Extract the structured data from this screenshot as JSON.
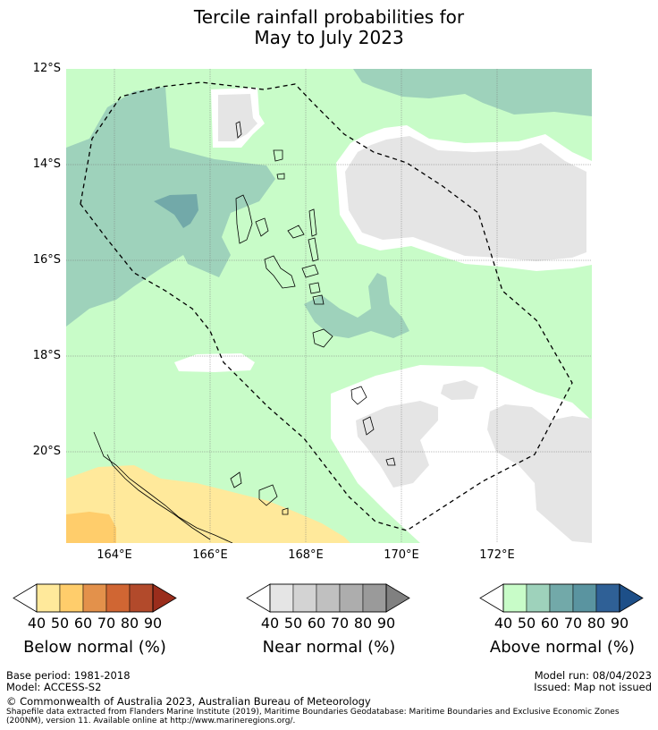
{
  "title_line1": "Tercile rainfall probabilities for",
  "title_line2": "May to July 2023",
  "map": {
    "lat_labels": [
      "12°S",
      "14°S",
      "16°S",
      "18°S",
      "20°S"
    ],
    "lon_labels": [
      "164°E",
      "166°E",
      "168°E",
      "170°E",
      "172°E"
    ],
    "lon_range": [
      163,
      174
    ],
    "lat_range": [
      -21.9,
      -12
    ],
    "colors": {
      "above_40": "#c8fcc8",
      "above_50": "#9ed2bb",
      "above_60": "#72a9a9",
      "near_40": "#e5e5e5",
      "below_40": "#ffe99b",
      "below_50": "#ffcd6b",
      "coast": "#000000",
      "eez": "#000000"
    }
  },
  "colorbars": [
    {
      "id": "below",
      "title": "Below normal (%)",
      "ticks": [
        "40",
        "50",
        "60",
        "70",
        "80",
        "90"
      ],
      "colors": [
        "#ffe99b",
        "#ffcd6b",
        "#e3914b",
        "#d06633",
        "#b24a2b",
        "#9a2d1c"
      ]
    },
    {
      "id": "near",
      "title": "Near normal (%)",
      "ticks": [
        "40",
        "50",
        "60",
        "70",
        "80",
        "90"
      ],
      "colors": [
        "#e5e5e5",
        "#d3d3d3",
        "#c0c0c0",
        "#adadad",
        "#9a9a9a",
        "#808080"
      ]
    },
    {
      "id": "above",
      "title": "Above normal (%)",
      "ticks": [
        "40",
        "50",
        "60",
        "70",
        "80",
        "90"
      ],
      "colors": [
        "#c8fcc8",
        "#9ed2bb",
        "#72a9a9",
        "#5a94a0",
        "#2f6096",
        "#1d4f88"
      ]
    }
  ],
  "footer": {
    "base_period": "Base period: 1981-2018",
    "model": "Model: ACCESS-S2",
    "model_run": "Model run: 08/04/2023",
    "issued": "Issued: Map not issued",
    "copyright": "© Commonwealth of Australia 2023, Australian Bureau of Meteorology",
    "shapefile_line1": "Shapefile data extracted from Flanders Marine Institute (2019), Maritime Boundaries Geodatabase: Maritime Boundaries and Exclusive Economic Zones",
    "shapefile_line2": "(200NM), version 11. Available online at http://www.marineregions.org/."
  }
}
